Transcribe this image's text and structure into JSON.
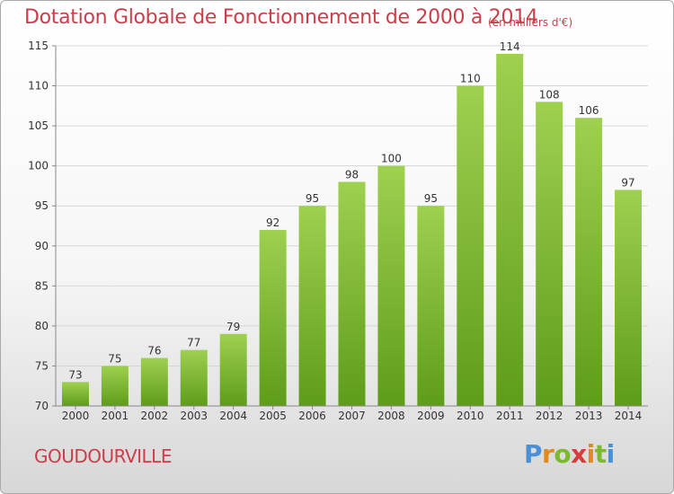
{
  "header": {
    "title": "Dotation Globale de Fonctionnement de 2000 à 2014",
    "subtitle": "(en milliers d'€)"
  },
  "footer": {
    "commune": "GOUDOURVILLE",
    "logo_text": "Proxiti"
  },
  "colors": {
    "title": "#cc3d4a",
    "bar_top": "#9fd050",
    "bar_bottom": "#5e9c1a",
    "grid": "#d6d6d6"
  },
  "chart_data": {
    "type": "bar",
    "categories": [
      "2000",
      "2001",
      "2002",
      "2003",
      "2004",
      "2005",
      "2006",
      "2007",
      "2008",
      "2009",
      "2010",
      "2011",
      "2012",
      "2013",
      "2014"
    ],
    "values": [
      73,
      75,
      76,
      77,
      79,
      92,
      95,
      98,
      100,
      95,
      110,
      114,
      108,
      106,
      97
    ],
    "ylim": [
      70,
      115
    ],
    "yticks": [
      70,
      75,
      80,
      85,
      90,
      95,
      100,
      105,
      110,
      115
    ],
    "grid": true,
    "data_labels": true
  }
}
